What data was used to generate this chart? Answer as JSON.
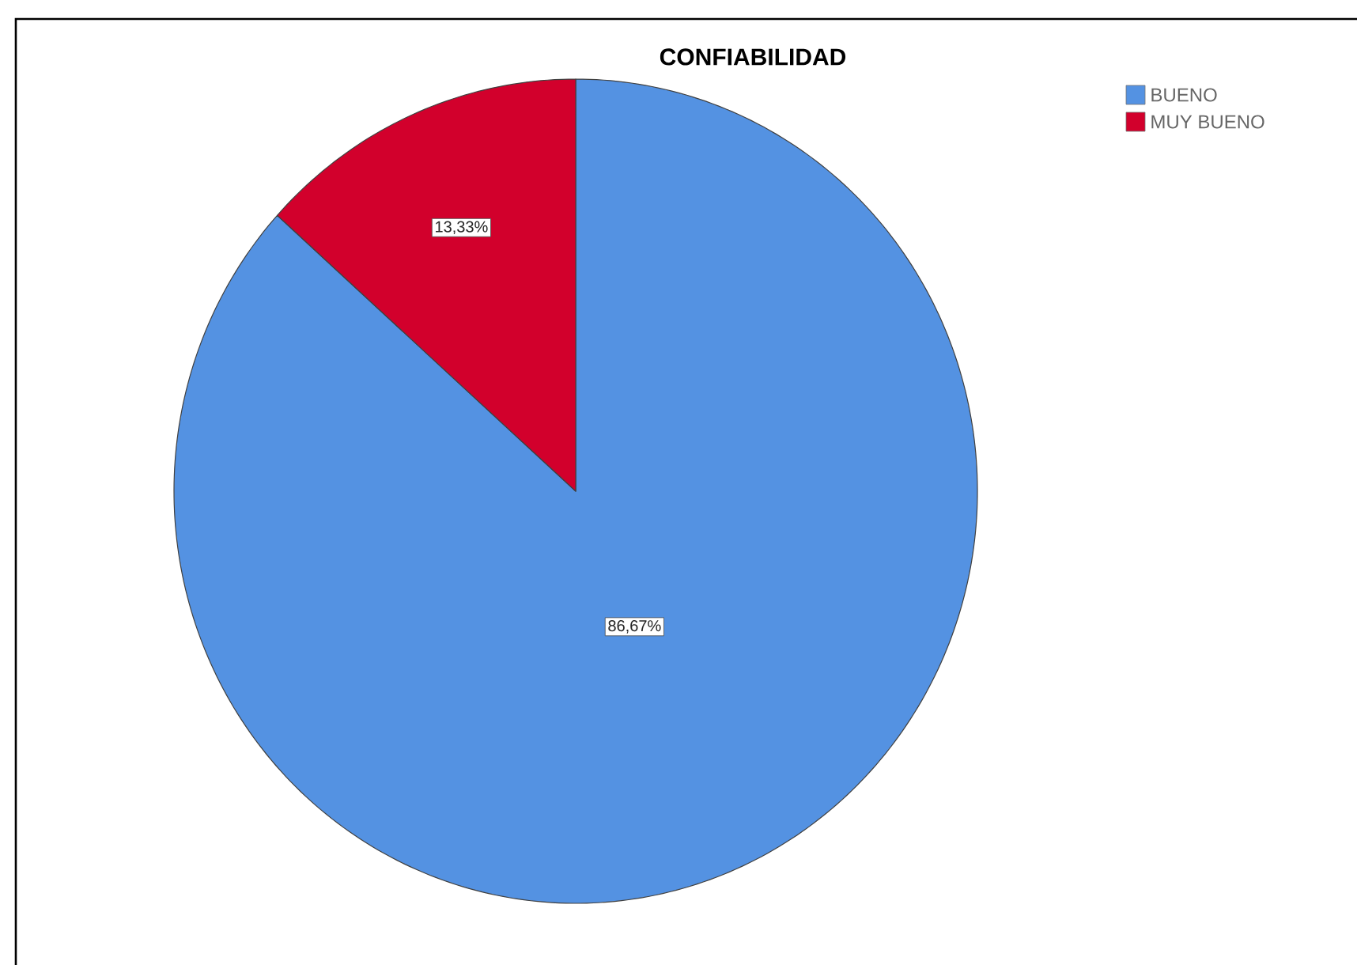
{
  "chart_data": {
    "type": "pie",
    "title": "CONFIABILIDAD",
    "categories": [
      "BUENO",
      "MUY BUENO"
    ],
    "values": [
      86.67,
      13.33
    ],
    "colors": [
      "#5492e2",
      "#d2002c"
    ],
    "value_labels": [
      "86,67%",
      "13,33%"
    ],
    "legend": "top right"
  }
}
